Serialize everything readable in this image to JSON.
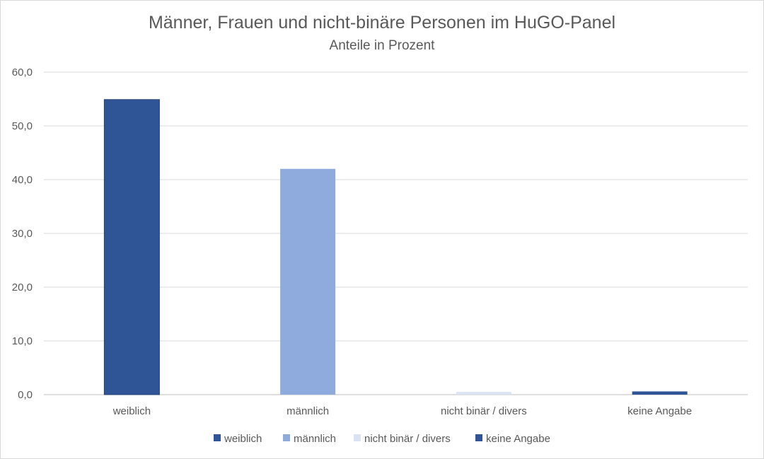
{
  "chart_data": {
    "type": "bar",
    "title": "Männer, Frauen und nicht-binäre Personen im HuGO-Panel",
    "subtitle": "Anteile in Prozent",
    "categories": [
      "weiblich",
      "männlich",
      "nicht binär / divers",
      "keine Angabe"
    ],
    "values": [
      54.9,
      42.0,
      0.5,
      0.6
    ],
    "bar_colors": [
      "#2f5597",
      "#8faadc",
      "#dae3f3",
      "#2f5597"
    ],
    "yticks": [
      "0,0",
      "10,0",
      "20,0",
      "30,0",
      "40,0",
      "50,0",
      "60,0"
    ],
    "ylim": [
      0,
      60
    ],
    "grid": true,
    "legend_position": "bottom",
    "legend": [
      {
        "label": "weiblich",
        "color": "#2f5597"
      },
      {
        "label": "männlich",
        "color": "#8faadc"
      },
      {
        "label": "nicht binär / divers",
        "color": "#dae3f3"
      },
      {
        "label": "keine Angabe",
        "color": "#2f5597"
      }
    ],
    "xlabel": "",
    "ylabel": ""
  }
}
